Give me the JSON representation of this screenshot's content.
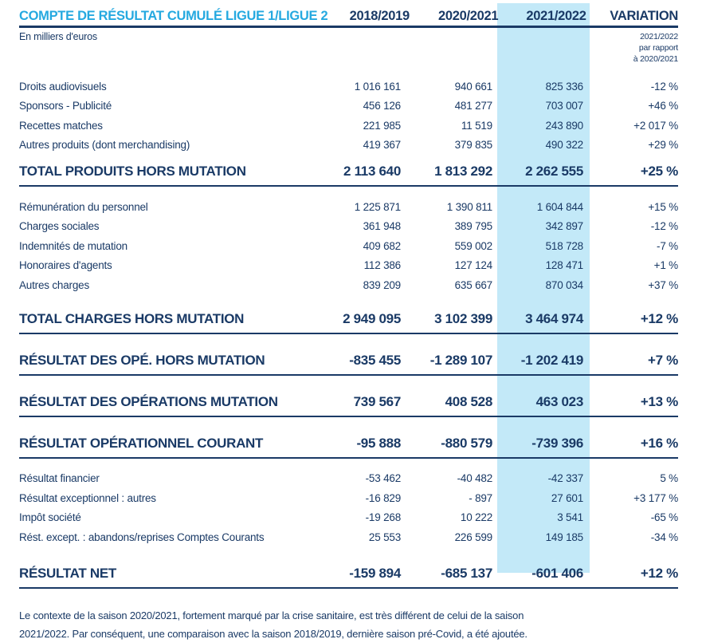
{
  "colors": {
    "navy_text": "#1a3a66",
    "cyan_title": "#25a9e0",
    "highlight_band": "#c3e9f8"
  },
  "header": {
    "title": "COMPTE DE RÉSULTAT CUMULÉ LIGUE 1/LIGUE 2",
    "columns": [
      "2018/2019",
      "2020/2021",
      "2021/2022",
      "VARIATION"
    ]
  },
  "subheader": {
    "unit_note": "En milliers d'euros",
    "variation_note_lines": [
      "2021/2022",
      "par rapport",
      "à 2020/2021"
    ]
  },
  "table": {
    "rows": [
      {
        "label": "Droits audiovisuels",
        "values": [
          "1 016 161",
          "940 661",
          "825 336",
          "-12 %"
        ],
        "type": "normal",
        "gap": "section"
      },
      {
        "label": "Sponsors - Publicité",
        "values": [
          "456 126",
          "481 277",
          "703 007",
          "+46 %"
        ],
        "type": "normal",
        "gap": "none"
      },
      {
        "label": "Recettes matches",
        "values": [
          "221 985",
          "11 519",
          "243 890",
          "+2 017 %"
        ],
        "type": "normal",
        "gap": "none"
      },
      {
        "label": "Autres produits (dont merchandising)",
        "values": [
          "419 367",
          "379 835",
          "490 322",
          "+29 %"
        ],
        "type": "normal",
        "gap": "none"
      },
      {
        "label": "TOTAL PRODUITS HORS MUTATION",
        "values": [
          "2 113 640",
          "1 813 292",
          "2 262 555",
          "+25 %"
        ],
        "type": "total",
        "gap": "total"
      },
      {
        "label": "Rémunération du personnel",
        "values": [
          "1 225 871",
          "1 390 811",
          "1 604 844",
          "+15 %"
        ],
        "type": "normal",
        "gap": "section"
      },
      {
        "label": "Charges sociales",
        "values": [
          "361 948",
          "389 795",
          "342 897",
          "-12 %"
        ],
        "type": "normal",
        "gap": "none"
      },
      {
        "label": "Indemnités de mutation",
        "values": [
          "409 682",
          "559 002",
          "518 728",
          "-7 %"
        ],
        "type": "normal",
        "gap": "none"
      },
      {
        "label": "Honoraires d'agents",
        "values": [
          "112 386",
          "127 124",
          "128 471",
          "+1 %"
        ],
        "type": "normal",
        "gap": "none"
      },
      {
        "label": "Autres charges",
        "values": [
          "839 209",
          "635 667",
          "870 034",
          "+37 %"
        ],
        "type": "normal",
        "gap": "none"
      },
      {
        "label": "TOTAL CHARGES HORS MUTATION",
        "values": [
          "2 949 095",
          "3 102 399",
          "3 464 974",
          "+12 %"
        ],
        "type": "total",
        "gap": "section"
      },
      {
        "label": "RÉSULTAT DES OPÉ. HORS MUTATION",
        "values": [
          "-835 455",
          "-1 289 107",
          "-1 202 419",
          "+7 %"
        ],
        "type": "total",
        "gap": "big"
      },
      {
        "label": "RÉSULTAT DES OPÉRATIONS MUTATION",
        "values": [
          "739 567",
          "408 528",
          "463 023",
          "+13 %"
        ],
        "type": "total",
        "gap": "big"
      },
      {
        "label": "RÉSULTAT OPÉRATIONNEL COURANT",
        "values": [
          "-95 888",
          "-880 579",
          "-739 396",
          "+16 %"
        ],
        "type": "total",
        "gap": "big"
      },
      {
        "label": "Résultat financier",
        "values": [
          "-53 462",
          "-40 482",
          "-42 337",
          "5 %"
        ],
        "type": "normal",
        "gap": "section"
      },
      {
        "label": "Résultat exceptionnel : autres",
        "values": [
          "-16 829",
          "- 897",
          "27 601",
          "+3 177 %"
        ],
        "type": "normal",
        "gap": "none"
      },
      {
        "label": "Impôt société",
        "values": [
          "-19 268",
          "10 222",
          "3 541",
          "-65 %"
        ],
        "type": "normal",
        "gap": "none"
      },
      {
        "label": "Rést. except. : abandons/reprises Comptes Courants",
        "values": [
          "25 553",
          "226 599",
          "149 185",
          "-34 %"
        ],
        "type": "normal",
        "gap": "none"
      },
      {
        "label": "RÉSULTAT NET",
        "values": [
          "-159 894",
          "-685 137",
          "-601 406",
          "+12 %"
        ],
        "type": "total",
        "gap": "big"
      }
    ]
  },
  "footnote": {
    "lines": [
      "Le contexte de la saison 2020/2021, fortement marqué par la crise sanitaire, est très différent de celui de la saison",
      "2021/2022. Par conséquent, une comparaison avec la saison 2018/2019, dernière saison pré-Covid, a été ajoutée."
    ]
  }
}
